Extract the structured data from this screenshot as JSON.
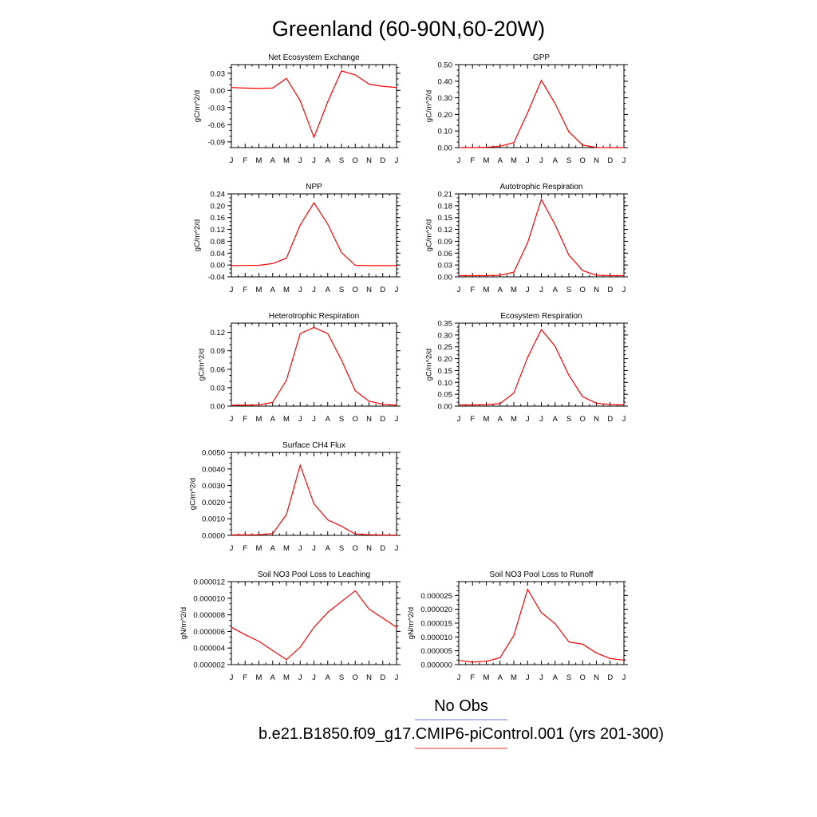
{
  "figure": {
    "title": "Greenland (60-90N,60-20W)",
    "legend": [
      {
        "label": "No Obs",
        "color": "#6a7bd6"
      },
      {
        "label": "b.e21.B1850.f09_g17.CMIP6-piControl.001 (yrs 201-300)",
        "color": "#ff3030"
      }
    ]
  },
  "chart_data": [
    {
      "type": "line",
      "title": "Net Ecosystem Exchange",
      "ylabel": "gC/m^2/d",
      "categories": [
        "J",
        "F",
        "M",
        "A",
        "M",
        "J",
        "J",
        "A",
        "S",
        "O",
        "N",
        "D",
        "J"
      ],
      "ylim": [
        -0.1,
        0.045
      ],
      "yticks": [
        0.03,
        0.0,
        -0.03,
        -0.06,
        -0.09
      ],
      "ytick_labels": [
        "0.03",
        "0.00",
        "-0.03",
        "-0.06",
        "-0.09"
      ],
      "series": [
        {
          "color": "#ff0000",
          "values": [
            0.005,
            0.004,
            0.0035,
            0.004,
            0.021,
            -0.018,
            -0.082,
            -0.02,
            0.034,
            0.027,
            0.011,
            0.007,
            0.005
          ]
        }
      ]
    },
    {
      "type": "line",
      "title": "GPP",
      "ylabel": "gC/m^2/d",
      "categories": [
        "J",
        "F",
        "M",
        "A",
        "M",
        "J",
        "J",
        "A",
        "S",
        "O",
        "N",
        "D",
        "J"
      ],
      "ylim": [
        0,
        0.5
      ],
      "yticks": [
        0.0,
        0.1,
        0.2,
        0.3,
        0.4,
        0.5
      ],
      "ytick_labels": [
        "0.00",
        "0.10",
        "0.20",
        "0.30",
        "0.40",
        "0.50"
      ],
      "series": [
        {
          "color": "#ff0000",
          "values": [
            0.0,
            0.0,
            0.002,
            0.008,
            0.03,
            0.21,
            0.405,
            0.265,
            0.095,
            0.015,
            0.001,
            0.0,
            0.0
          ]
        }
      ]
    },
    {
      "type": "line",
      "title": "NPP",
      "ylabel": "gC/m^2/d",
      "categories": [
        "J",
        "F",
        "M",
        "A",
        "M",
        "J",
        "J",
        "A",
        "S",
        "O",
        "N",
        "D",
        "J"
      ],
      "ylim": [
        -0.04,
        0.24
      ],
      "yticks": [
        -0.04,
        0.0,
        0.04,
        0.08,
        0.12,
        0.16,
        0.2,
        0.24
      ],
      "ytick_labels": [
        "-0.04",
        "0.00",
        "0.04",
        "0.08",
        "0.12",
        "0.16",
        "0.20",
        "0.24"
      ],
      "series": [
        {
          "color": "#ff0000",
          "values": [
            -0.002,
            -0.0015,
            -0.001,
            0.005,
            0.023,
            0.135,
            0.21,
            0.138,
            0.042,
            -0.001,
            -0.002,
            -0.002,
            -0.002
          ]
        }
      ]
    },
    {
      "type": "line",
      "title": "Autotrophic Respiration",
      "ylabel": "gC/m^2/d",
      "categories": [
        "J",
        "F",
        "M",
        "A",
        "M",
        "J",
        "J",
        "A",
        "S",
        "O",
        "N",
        "D",
        "J"
      ],
      "ylim": [
        0,
        0.21
      ],
      "yticks": [
        0.0,
        0.03,
        0.06,
        0.09,
        0.12,
        0.15,
        0.18,
        0.21
      ],
      "ytick_labels": [
        "0.00",
        "0.03",
        "0.06",
        "0.09",
        "0.12",
        "0.15",
        "0.18",
        "0.21"
      ],
      "series": [
        {
          "color": "#ff0000",
          "values": [
            0.003,
            0.003,
            0.003,
            0.004,
            0.012,
            0.086,
            0.196,
            0.132,
            0.055,
            0.016,
            0.004,
            0.003,
            0.003
          ]
        }
      ]
    },
    {
      "type": "line",
      "title": "Heterotrophic Respiration",
      "ylabel": "gC/m^2/d",
      "categories": [
        "J",
        "F",
        "M",
        "A",
        "M",
        "J",
        "J",
        "A",
        "S",
        "O",
        "N",
        "D",
        "J"
      ],
      "ylim": [
        0,
        0.135
      ],
      "yticks": [
        0.0,
        0.03,
        0.06,
        0.09,
        0.12
      ],
      "ytick_labels": [
        "0.00",
        "0.03",
        "0.06",
        "0.09",
        "0.12"
      ],
      "series": [
        {
          "color": "#ff0000",
          "values": [
            0.0015,
            0.0015,
            0.002,
            0.006,
            0.042,
            0.118,
            0.128,
            0.118,
            0.075,
            0.025,
            0.008,
            0.003,
            0.0015
          ]
        }
      ]
    },
    {
      "type": "line",
      "title": "Ecosystem Respiration",
      "ylabel": "gC/m^2/d",
      "categories": [
        "J",
        "F",
        "M",
        "A",
        "M",
        "J",
        "J",
        "A",
        "S",
        "O",
        "N",
        "D",
        "J"
      ],
      "ylim": [
        0,
        0.35
      ],
      "yticks": [
        0.0,
        0.05,
        0.1,
        0.15,
        0.2,
        0.25,
        0.3,
        0.35
      ],
      "ytick_labels": [
        "0.00",
        "0.05",
        "0.10",
        "0.15",
        "0.20",
        "0.25",
        "0.30",
        "0.35"
      ],
      "series": [
        {
          "color": "#ff0000",
          "values": [
            0.005,
            0.005,
            0.006,
            0.011,
            0.055,
            0.205,
            0.323,
            0.252,
            0.13,
            0.04,
            0.012,
            0.007,
            0.005
          ]
        }
      ]
    },
    {
      "type": "line",
      "title": "Surface CH4 Flux",
      "ylabel": "gC/m^2/d",
      "categories": [
        "J",
        "F",
        "M",
        "A",
        "M",
        "J",
        "J",
        "A",
        "S",
        "O",
        "N",
        "D",
        "J"
      ],
      "ylim": [
        0,
        0.005
      ],
      "yticks": [
        0.0,
        0.001,
        0.002,
        0.003,
        0.004,
        0.005
      ],
      "ytick_labels": [
        "0.0000",
        "0.0010",
        "0.0020",
        "0.0030",
        "0.0040",
        "0.0050"
      ],
      "series": [
        {
          "color": "#ff0000",
          "values": [
            3e-05,
            3e-05,
            4e-05,
            0.00011,
            0.00125,
            0.00422,
            0.0019,
            0.00093,
            0.00055,
            8e-05,
            4e-05,
            2e-05,
            2e-05
          ]
        }
      ]
    },
    {
      "type": "line",
      "title": "Soil NO3 Pool Loss to Leaching",
      "ylabel": "gN/m^2/d",
      "categories": [
        "J",
        "F",
        "M",
        "A",
        "M",
        "J",
        "J",
        "A",
        "S",
        "O",
        "N",
        "D",
        "J"
      ],
      "ylim": [
        2e-06,
        1.2e-05
      ],
      "yticks": [
        2e-06,
        4e-06,
        6e-06,
        8e-06,
        1e-05,
        1.2e-05
      ],
      "ytick_labels": [
        "0.000002",
        "0.000004",
        "0.000006",
        "0.000008",
        "0.000010",
        "0.000012"
      ],
      "series": [
        {
          "color": "#ff0000",
          "values": [
            6.5e-06,
            5.6e-06,
            4.8e-06,
            3.7e-06,
            2.6e-06,
            4.1e-06,
            6.5e-06,
            8.3e-06,
            9.6e-06,
            1.09e-05,
            8.7e-06,
            7.6e-06,
            6.5e-06
          ]
        }
      ]
    },
    {
      "type": "line",
      "title": "Soil NO3 Pool Loss to Runoff",
      "ylabel": "gN/m^2/d",
      "categories": [
        "J",
        "F",
        "M",
        "A",
        "M",
        "J",
        "J",
        "A",
        "S",
        "O",
        "N",
        "D",
        "J"
      ],
      "ylim": [
        0,
        3e-05
      ],
      "yticks": [
        0.0,
        5e-06,
        1e-05,
        1.5e-05,
        2e-05,
        2.5e-05
      ],
      "ytick_labels": [
        "0.000000",
        "0.000005",
        "0.000010",
        "0.000015",
        "0.000020",
        "0.000025"
      ],
      "series": [
        {
          "color": "#ff0000",
          "values": [
            1.5e-06,
            9e-07,
            1.2e-06,
            2.5e-06,
            1.05e-05,
            2.72e-05,
            1.88e-05,
            1.48e-05,
            8.2e-06,
            7.4e-06,
            4.2e-06,
            2.2e-06,
            1.6e-06
          ]
        }
      ]
    }
  ]
}
